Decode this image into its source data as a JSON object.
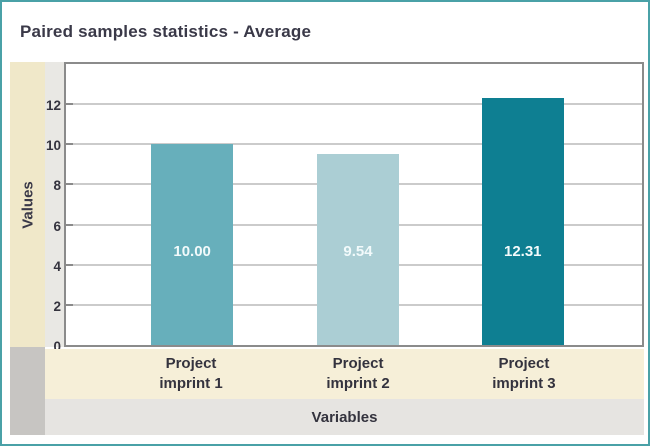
{
  "title": "Paired samples statistics - Average",
  "chart_data": {
    "type": "bar",
    "title": "Paired samples statistics - Average",
    "categories": [
      "Project imprint 1",
      "Project imprint 2",
      "Project imprint 3"
    ],
    "values": [
      10.0,
      9.54,
      12.31
    ],
    "value_labels": [
      "10.00",
      "9.54",
      "12.31"
    ],
    "bar_colors": [
      "#67afbb",
      "#abced4",
      "#0e7f92"
    ],
    "value_label_color": "#f2fafb",
    "xlabel": "Variables",
    "ylabel": "Values",
    "ylim": [
      0,
      14
    ],
    "yticks": [
      0,
      2,
      4,
      6,
      8,
      10,
      12
    ],
    "grid": true,
    "legend": "none",
    "accent_border_color": "#4aa1a7"
  }
}
